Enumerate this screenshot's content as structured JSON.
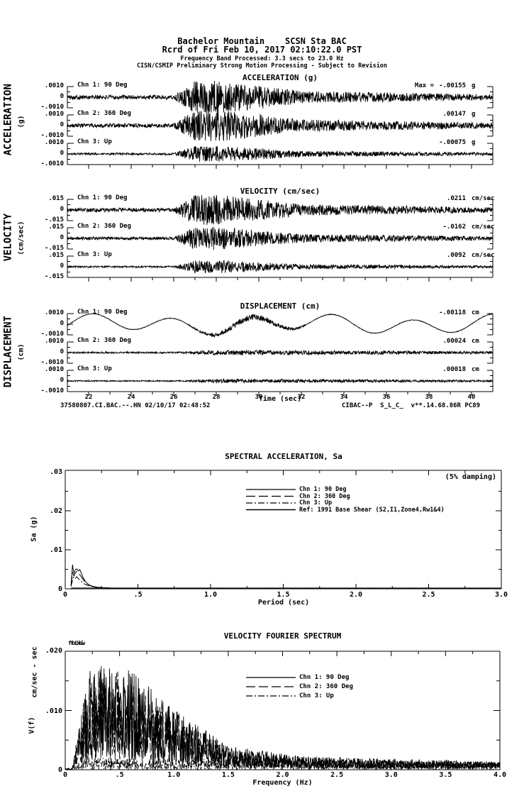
{
  "header": {
    "station_line": "Bachelor Mountain    SCSN Sta BAC",
    "record_line": "Rcrd of Fri Feb 10, 2017 02:10:22.0 PST",
    "band_line": "Frequency Band Processed: 3.3 secs to 23.0 Hz",
    "processing_line": "CISN/CSMIP Preliminary Strong Motion Processing - Subject to Revision"
  },
  "sections": [
    {
      "title": "ACCELERATION (g)",
      "side_label": "ACCELERATION",
      "side_unit": "(g)",
      "tick_top": ".0010",
      "tick_zero": "0",
      "tick_bottom": "-.0010",
      "channels": [
        {
          "label": "Chn 1: 90 Deg",
          "max_label": "Max =",
          "value": "-.00155",
          "unit": "g"
        },
        {
          "label": "Chn 2: 360 Deg",
          "value": ".00147",
          "unit": "g"
        },
        {
          "label": "Chn 3: Up",
          "value": "-.00075",
          "unit": "g"
        }
      ]
    },
    {
      "title": "VELOCITY (cm/sec)",
      "side_label": "VELOCITY",
      "side_unit": "(cm/sec)",
      "tick_top": ".015",
      "tick_zero": "0",
      "tick_bottom": "-.015",
      "channels": [
        {
          "label": "Chn 1: 90 Deg",
          "value": ".0211",
          "unit": "cm/sec"
        },
        {
          "label": "Chn 2: 360 Deg",
          "value": "-.0162",
          "unit": "cm/sec"
        },
        {
          "label": "Chn 3: Up",
          "value": ".0092",
          "unit": "cm/sec"
        }
      ]
    },
    {
      "title": "DISPLACEMENT (cm)",
      "side_label": "DISPLACEMENT",
      "side_unit": "(cm)",
      "tick_top": ".0010",
      "tick_zero": "0",
      "tick_bottom": "-.0010",
      "channels": [
        {
          "label": "Chn 1: 90 Deg",
          "value": "-.00118",
          "unit": "cm"
        },
        {
          "label": "Chn 2: 360 Deg",
          "value": ".00024",
          "unit": "cm"
        },
        {
          "label": "Chn 3: Up",
          "value": ".00018",
          "unit": "cm"
        }
      ]
    }
  ],
  "time_axis": {
    "ticks": [
      "22",
      "24",
      "26",
      "28",
      "30",
      "32",
      "34",
      "36",
      "38",
      "40"
    ],
    "label": "Time (sec)"
  },
  "footer": {
    "left": "37580807.CI.BAC.--.HN 02/10/17 02:48:52",
    "right": "CIBAC--P  S_L_C_  v**.14.68.86R PC89"
  },
  "sa_plot": {
    "title": "SPECTRAL ACCELERATION, Sa",
    "damping_note": "(5% damping)",
    "ylabel": "Sa (g)",
    "xlabel": "Period (sec)",
    "yticks": [
      ".03",
      ".02",
      ".01",
      "0"
    ],
    "xticks": [
      "0",
      ".5",
      "1.0",
      "1.5",
      "2.0",
      "2.5",
      "3.0"
    ],
    "legend": [
      "Chn 1: 90 Deg",
      "Chn 2: 360 Deg",
      "Chn 3: Up",
      "Ref: 1991 Base Shear (S2,I1,Zone4,Rw1&4)"
    ]
  },
  "fourier_plot": {
    "title": "VELOCITY FOURIER SPECTRUM",
    "corner_labels": [
      "fcLow",
      "fcHi"
    ],
    "ylabel_symbol": "V(f)",
    "ylabel_unit": "cm/sec - sec",
    "xlabel": "Frequency (Hz)",
    "yticks": [
      ".020",
      ".010",
      "0"
    ],
    "xticks": [
      "0",
      ".5",
      "1.0",
      "1.5",
      "2.0",
      "2.5",
      "3.0",
      "3.5",
      "4.0"
    ],
    "legend": [
      "Chn 1: 90 Deg",
      "Chn 2: 360 Deg",
      "Chn 3: Up"
    ]
  },
  "chart_data": [
    {
      "id": "acceleration_time_history",
      "type": "line",
      "title": "ACCELERATION (g)",
      "x": {
        "label": "Time (sec)",
        "range_sec": [
          21,
          41.3
        ],
        "ticks": [
          22,
          24,
          26,
          28,
          30,
          32,
          34,
          36,
          38,
          40
        ]
      },
      "y": {
        "unit": "g",
        "tick": 0.001,
        "range": [
          -0.001,
          0.001
        ]
      },
      "channels": [
        {
          "name": "Chn 1: 90 Deg",
          "peak": -0.00155
        },
        {
          "name": "Chn 2: 360 Deg",
          "peak": 0.00147
        },
        {
          "name": "Chn 3: Up",
          "peak": -0.00075
        }
      ],
      "envelope_note": "low noise 21-26.5 s, strong burst 27-31.5 s, decaying coda to 41 s"
    },
    {
      "id": "velocity_time_history",
      "type": "line",
      "title": "VELOCITY (cm/sec)",
      "x": {
        "label": "Time (sec)",
        "range_sec": [
          21,
          41.3
        ],
        "ticks": [
          22,
          24,
          26,
          28,
          30,
          32,
          34,
          36,
          38,
          40
        ]
      },
      "y": {
        "unit": "cm/sec",
        "tick": 0.015,
        "range": [
          -0.015,
          0.015
        ]
      },
      "channels": [
        {
          "name": "Chn 1: 90 Deg",
          "peak": 0.0211
        },
        {
          "name": "Chn 2: 360 Deg",
          "peak": -0.0162
        },
        {
          "name": "Chn 3: Up",
          "peak": 0.0092
        }
      ],
      "envelope_note": "low noise 21-26.5 s, strong burst 27-31.5 s, decaying coda to 41 s"
    },
    {
      "id": "displacement_time_history",
      "type": "line",
      "title": "DISPLACEMENT (cm)",
      "x": {
        "label": "Time (sec)",
        "range_sec": [
          21,
          41.3
        ],
        "ticks": [
          22,
          24,
          26,
          28,
          30,
          32,
          34,
          36,
          38,
          40
        ]
      },
      "y": {
        "unit": "cm",
        "tick": 0.001,
        "range": [
          -0.001,
          0.001
        ]
      },
      "channels": [
        {
          "name": "Chn 1: 90 Deg",
          "peak": -0.00118,
          "shape": "smooth long-period (~3-4 s) drift with mid-record ripples"
        },
        {
          "name": "Chn 2: 360 Deg",
          "peak": 0.00024,
          "shape": "near-flat small noise"
        },
        {
          "name": "Chn 3: Up",
          "peak": 0.00018,
          "shape": "near-flat small noise"
        }
      ]
    },
    {
      "id": "spectral_acceleration",
      "type": "line",
      "title": "SPECTRAL ACCELERATION, Sa",
      "damping": "5%",
      "xlabel": "Period (sec)",
      "ylabel": "Sa (g)",
      "xlim": [
        0,
        3
      ],
      "ylim": [
        0,
        0.03
      ],
      "series": [
        {
          "name": "Chn 1: 90 Deg",
          "style": "solid",
          "points": [
            [
              0.04,
              0.001
            ],
            [
              0.045,
              0.0034
            ],
            [
              0.05,
              0.0062
            ],
            [
              0.055,
              0.0048
            ],
            [
              0.06,
              0.004
            ],
            [
              0.07,
              0.0049
            ],
            [
              0.08,
              0.0051
            ],
            [
              0.09,
              0.0046
            ],
            [
              0.1,
              0.0049
            ],
            [
              0.11,
              0.0041
            ],
            [
              0.12,
              0.0031
            ],
            [
              0.14,
              0.0018
            ],
            [
              0.16,
              0.0011
            ],
            [
              0.18,
              0.0007
            ],
            [
              0.22,
              0.0004
            ],
            [
              0.28,
              0.00025
            ],
            [
              0.35,
              0.00016
            ],
            [
              0.5,
              0.0001
            ],
            [
              0.8,
              6e-05
            ],
            [
              1.5,
              4e-05
            ],
            [
              3.0,
              3e-05
            ]
          ]
        },
        {
          "name": "Chn 2: 360 Deg",
          "style": "dash",
          "points": [
            [
              0.04,
              0.0008
            ],
            [
              0.05,
              0.0041
            ],
            [
              0.06,
              0.0033
            ],
            [
              0.07,
              0.0041
            ],
            [
              0.08,
              0.0045
            ],
            [
              0.09,
              0.004
            ],
            [
              0.1,
              0.0036
            ],
            [
              0.12,
              0.0026
            ],
            [
              0.14,
              0.0015
            ],
            [
              0.17,
              0.0009
            ],
            [
              0.2,
              0.0005
            ],
            [
              0.25,
              0.0003
            ],
            [
              0.35,
              0.00016
            ],
            [
              0.5,
              0.0001
            ],
            [
              1.0,
              5e-05
            ],
            [
              3.0,
              3e-05
            ]
          ]
        },
        {
          "name": "Chn 3: Up",
          "style": "dashdot",
          "points": [
            [
              0.04,
              0.0006
            ],
            [
              0.05,
              0.0023
            ],
            [
              0.06,
              0.0031
            ],
            [
              0.07,
              0.0027
            ],
            [
              0.08,
              0.0031
            ],
            [
              0.09,
              0.0026
            ],
            [
              0.11,
              0.002
            ],
            [
              0.13,
              0.0013
            ],
            [
              0.16,
              0.0008
            ],
            [
              0.2,
              0.0004
            ],
            [
              0.3,
              0.0002
            ],
            [
              0.5,
              0.0001
            ],
            [
              1.0,
              5e-05
            ],
            [
              3.0,
              3e-05
            ]
          ]
        },
        {
          "name": "Ref: 1991 Base Shear (S2,I1,Zone4,Rw1&4)",
          "style": "solid",
          "points": [
            [
              0.04,
              0.0002
            ],
            [
              3.0,
              0.0002
            ]
          ]
        }
      ]
    },
    {
      "id": "velocity_fourier_spectrum",
      "type": "line",
      "title": "VELOCITY FOURIER SPECTRUM",
      "xlabel": "Frequency (Hz)",
      "ylabel": "V(f) cm/sec - sec",
      "xlim": [
        0,
        4
      ],
      "ylim": [
        0,
        0.02
      ],
      "series": [
        {
          "name": "Chn 1: 90 Deg",
          "style": "solid",
          "peak": 0.0175,
          "dominant_band_hz": [
            0.15,
            1.0
          ],
          "floor_above_2hz": 0.001
        },
        {
          "name": "Chn 2: 360 Deg",
          "style": "dash",
          "peak": 0.016,
          "dominant_band_hz": [
            0.15,
            1.0
          ],
          "floor_above_2hz": 0.001
        },
        {
          "name": "Chn 3: Up",
          "style": "dashdot",
          "peak": 0.002,
          "dominant_band_hz": [
            0.1,
            4.0
          ]
        }
      ]
    }
  ]
}
